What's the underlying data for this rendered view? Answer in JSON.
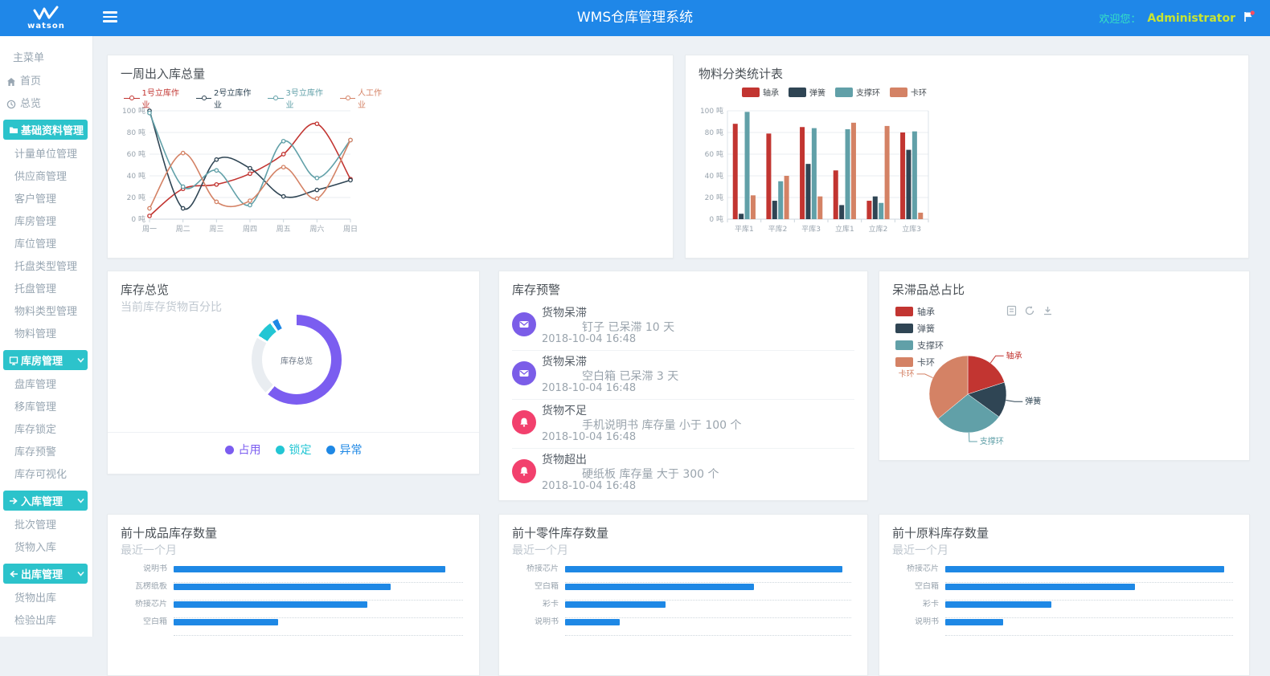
{
  "header": {
    "brand": "watson",
    "title": "WMS仓库管理系统",
    "welcome_label": "欢迎您：",
    "username": "Administrator"
  },
  "sidebar": {
    "section_label": "主菜单",
    "items": [
      {
        "kind": "link",
        "icon": "home",
        "label": "首页"
      },
      {
        "kind": "link",
        "icon": "overview",
        "label": "总览"
      },
      {
        "kind": "group",
        "icon": "folder",
        "label": "基础资料管理",
        "chevron": false
      },
      {
        "kind": "link",
        "label": "计量单位管理"
      },
      {
        "kind": "link",
        "label": "供应商管理"
      },
      {
        "kind": "link",
        "label": "客户管理"
      },
      {
        "kind": "link",
        "label": "库房管理"
      },
      {
        "kind": "link",
        "label": "库位管理"
      },
      {
        "kind": "link",
        "label": "托盘类型管理"
      },
      {
        "kind": "link",
        "label": "托盘管理"
      },
      {
        "kind": "link",
        "label": "物料类型管理"
      },
      {
        "kind": "link",
        "label": "物料管理"
      },
      {
        "kind": "group",
        "icon": "warehouse",
        "label": "库房管理",
        "chevron": true
      },
      {
        "kind": "link",
        "label": "盘库管理"
      },
      {
        "kind": "link",
        "label": "移库管理"
      },
      {
        "kind": "link",
        "label": "库存锁定"
      },
      {
        "kind": "link",
        "label": "库存预警"
      },
      {
        "kind": "link",
        "label": "库存可视化"
      },
      {
        "kind": "group",
        "icon": "arrow-right",
        "label": "入库管理",
        "chevron": true
      },
      {
        "kind": "link",
        "label": "批次管理"
      },
      {
        "kind": "link",
        "label": "货物入库"
      },
      {
        "kind": "group",
        "icon": "arrow-left",
        "label": "出库管理",
        "chevron": true
      },
      {
        "kind": "link",
        "label": "货物出库"
      },
      {
        "kind": "link",
        "label": "检验出库"
      },
      {
        "kind": "group",
        "icon": "",
        "label": "",
        "chevron": false,
        "partial": true
      }
    ]
  },
  "cards": {
    "weekly": {
      "title": "一周出入库总量",
      "chart_data": {
        "type": "line",
        "smooth": true,
        "unit": "吨",
        "x": [
          "周一",
          "周二",
          "周三",
          "周四",
          "周五",
          "周六",
          "周日"
        ],
        "ylim": [
          0,
          100
        ],
        "ytick_step": 20,
        "legend_position": "top",
        "series": [
          {
            "name": "1号立库作业",
            "color": "#c23531",
            "values": [
              3,
              28,
              32,
              42,
              60,
              88,
              37
            ]
          },
          {
            "name": "2号立库作业",
            "color": "#2f4554",
            "values": [
              100,
              10,
              55,
              47,
              21,
              27,
              36
            ]
          },
          {
            "name": "3号立库作业",
            "color": "#61a0a8",
            "values": [
              98,
              30,
              45,
              13,
              72,
              38,
              73
            ]
          },
          {
            "name": "人工作业",
            "color": "#d48265",
            "values": [
              10,
              61,
              16,
              17,
              48,
              19,
              73
            ]
          }
        ]
      }
    },
    "material": {
      "title": "物料分类统计表",
      "chart_data": {
        "type": "bar",
        "unit": "吨",
        "categories": [
          "平库1",
          "平库2",
          "平库3",
          "立库1",
          "立库2",
          "立库3"
        ],
        "ylim": [
          0,
          100
        ],
        "ytick_step": 20,
        "legend_position": "top",
        "series": [
          {
            "name": "轴承",
            "color": "#c23531",
            "values": [
              88,
              79,
              85,
              45,
              17,
              80
            ]
          },
          {
            "name": "弹簧",
            "color": "#2f4554",
            "values": [
              5,
              17,
              51,
              13,
              21,
              64
            ]
          },
          {
            "name": "支撑环",
            "color": "#61a0a8",
            "values": [
              99,
              35,
              84,
              83,
              15,
              81
            ]
          },
          {
            "name": "卡环",
            "color": "#d48265",
            "values": [
              22,
              40,
              21,
              89,
              86,
              6
            ]
          }
        ]
      }
    },
    "overview": {
      "title": "库存总览",
      "subtitle": "当前库存货物百分比",
      "chart_data": {
        "type": "donut",
        "center_label": "库存总览",
        "segments": [
          {
            "name": "占用",
            "value": 62,
            "color": "#7b5df0"
          },
          {
            "name": "",
            "value": 22,
            "color": "#e9edf1"
          },
          {
            "name": "锁定",
            "value": 7,
            "color": "#23c6d4"
          },
          {
            "name": "异常",
            "value": 3,
            "color": "#1e88e5"
          }
        ],
        "legend": [
          {
            "label": "占用",
            "color": "#7b5df0"
          },
          {
            "label": "锁定",
            "color": "#23c6d4"
          },
          {
            "label": "异常",
            "color": "#1e88e5"
          }
        ]
      }
    },
    "alerts": {
      "title": "库存预警",
      "items": [
        {
          "category": "货物呆滞",
          "detail": "钉子 已呆滞 10 天",
          "time": "2018-10-04 16:48",
          "icon": "envelope",
          "icon_color": "#7b5de8"
        },
        {
          "category": "货物呆滞",
          "detail": "空白箱 已呆滞 3 天",
          "time": "2018-10-04 16:48",
          "icon": "envelope",
          "icon_color": "#7b5de8"
        },
        {
          "category": "货物不足",
          "detail": "手机说明书 库存量 小于 100 个",
          "time": "2018-10-04 16:48",
          "icon": "alert",
          "icon_color": "#f2406d"
        },
        {
          "category": "货物超出",
          "detail": "硬纸板 库存量 大于 300 个",
          "time": "2018-10-04 16:48",
          "icon": "alert",
          "icon_color": "#f2406d"
        }
      ]
    },
    "stagnant": {
      "title": "呆滞品总占比",
      "chart_data": {
        "type": "pie",
        "legend_position": "left-top",
        "slices": [
          {
            "name": "轴承",
            "value": 20,
            "color": "#c23531"
          },
          {
            "name": "弹簧",
            "value": 15,
            "color": "#2f4554"
          },
          {
            "name": "支撑环",
            "value": 29,
            "color": "#61a0a8"
          },
          {
            "name": "卡环",
            "value": 36,
            "color": "#d48265"
          }
        ]
      }
    },
    "top_finished": {
      "title": "前十成品库存数量",
      "subtitle": "最近一个月",
      "chart_data": {
        "type": "hbar",
        "value_unit": "percent_of_track_width",
        "bars": [
          {
            "label": "说明书",
            "percent": 94
          },
          {
            "label": "瓦楞纸板",
            "percent": 75
          },
          {
            "label": "桥接芯片",
            "percent": 67
          },
          {
            "label": "空白箱",
            "percent": 36
          }
        ]
      }
    },
    "top_parts": {
      "title": "前十零件库存数量",
      "subtitle": "最近一个月",
      "chart_data": {
        "type": "hbar",
        "value_unit": "percent_of_track_width",
        "bars": [
          {
            "label": "桥接芯片",
            "percent": 97
          },
          {
            "label": "空白箱",
            "percent": 66
          },
          {
            "label": "彩卡",
            "percent": 35
          },
          {
            "label": "说明书",
            "percent": 19
          }
        ]
      }
    },
    "top_raw": {
      "title": "前十原料库存数量",
      "subtitle": "最近一个月",
      "chart_data": {
        "type": "hbar",
        "value_unit": "percent_of_track_width",
        "bars": [
          {
            "label": "桥接芯片",
            "percent": 97
          },
          {
            "label": "空白箱",
            "percent": 66
          },
          {
            "label": "彩卡",
            "percent": 37
          },
          {
            "label": "说明书",
            "percent": 20
          }
        ]
      }
    }
  },
  "colors": {
    "header_blue": "#1f87e8",
    "sidebar_active_teal": "#2cc3cb",
    "main_background": "#edf1f5",
    "hbar_blue": "#1e88e5",
    "welcome_teal": "#35e2c5",
    "username_lime": "#c7e434",
    "echarts_palette": [
      "#c23531",
      "#2f4554",
      "#61a0a8",
      "#d48265"
    ]
  }
}
